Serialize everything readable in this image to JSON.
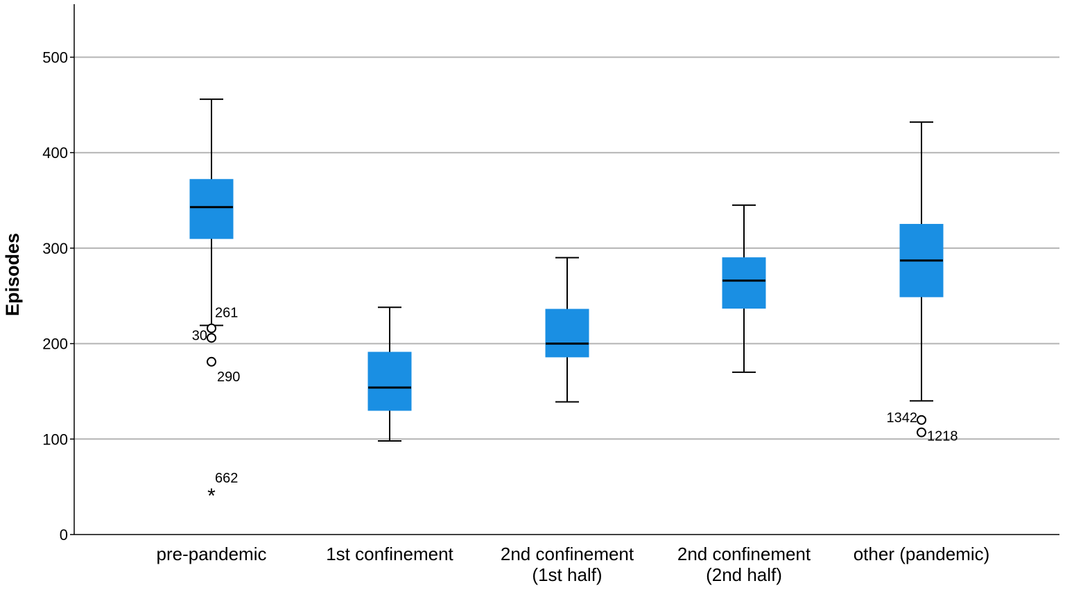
{
  "chart_data": {
    "type": "boxplot",
    "title": "",
    "xlabel": "",
    "ylabel": "Episodes",
    "ylim": [
      0,
      560
    ],
    "yticks": [
      0,
      100,
      200,
      300,
      400,
      500
    ],
    "grid": true,
    "box_color": "#1a8fe3",
    "categories": [
      {
        "lines": [
          "pre-pandemic"
        ],
        "whisker_low": 219,
        "q1": 310,
        "median": 343,
        "q3": 372,
        "whisker_high": 456
      },
      {
        "lines": [
          "1st confinement"
        ],
        "whisker_low": 98,
        "q1": 130,
        "median": 154,
        "q3": 191,
        "whisker_high": 238
      },
      {
        "lines": [
          "2nd confinement",
          "(1st half)"
        ],
        "whisker_low": 139,
        "q1": 186,
        "median": 200,
        "q3": 236,
        "whisker_high": 290
      },
      {
        "lines": [
          "2nd confinement",
          "(2nd half)"
        ],
        "whisker_low": 170,
        "q1": 237,
        "median": 266,
        "q3": 290,
        "whisker_high": 345
      },
      {
        "lines": [
          "other (pandemic)"
        ],
        "whisker_low": 140,
        "q1": 249,
        "median": 287,
        "q3": 325,
        "whisker_high": 432
      }
    ],
    "outliers": [
      {
        "category": 0,
        "value": 216,
        "marker": "circle",
        "label": "261",
        "label_pos": "above-right"
      },
      {
        "category": 0,
        "value": 206,
        "marker": "circle",
        "label": "30",
        "label_pos": "left"
      },
      {
        "category": 0,
        "value": 181,
        "marker": "circle",
        "label": "290",
        "label_pos": "below-right"
      },
      {
        "category": 0,
        "value": 43,
        "marker": "star",
        "label": "662",
        "label_pos": "above-right"
      },
      {
        "category": 4,
        "value": 120,
        "marker": "circle",
        "label": "1342",
        "label_pos": "left"
      },
      {
        "category": 4,
        "value": 107,
        "marker": "circle",
        "label": "1218",
        "label_pos": "right"
      }
    ]
  }
}
